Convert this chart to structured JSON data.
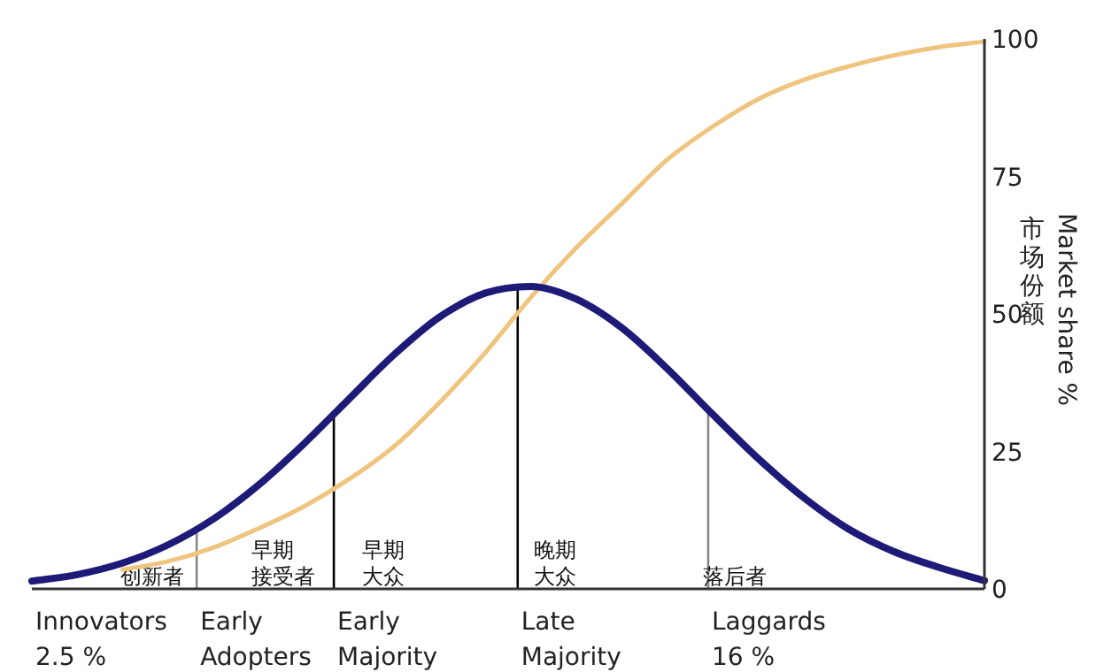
{
  "chart_data": {
    "type": "line",
    "ylabel": "Market share %",
    "categories": [
      null,
      null,
      null,
      null,
      null,
      null,
      null,
      null,
      null,
      null,
      null,
      null,
      null,
      null,
      null,
      null,
      null,
      null,
      null,
      null,
      null,
      null
    ],
    "series": [
      {
        "color": "#efc47e",
        "values": [
          null,
          null,
          3.5,
          5,
          7.5,
          11,
          15,
          20,
          26,
          34,
          43,
          53,
          62,
          70,
          78,
          84,
          89,
          92.5,
          95,
          97,
          98.5,
          99.5
        ]
      },
      {
        "color": "#1e1a78",
        "values": [
          1.4,
          2.6,
          4.7,
          8,
          12.7,
          18.9,
          26.4,
          34.6,
          42.7,
          49.5,
          53.8,
          55,
          52.7,
          47.5,
          40.1,
          31.8,
          23.8,
          16.7,
          10.9,
          6.8,
          3.9,
          1.5
        ]
      }
    ],
    "ylim": [
      0,
      100
    ],
    "yticks": [
      0,
      25,
      50,
      75,
      100
    ],
    "grid": false,
    "marker": "none",
    "line_style": "solid",
    "annotations": [
      "创新者",
      "早期",
      "接受者",
      "早期",
      "大众",
      "晚期",
      "大众",
      "落后者",
      "Innovators\n2.5 %",
      "Early\nAdopters",
      "Early\nMajority",
      "Late\nMajority",
      "Laggards\n16 %",
      "市场份额"
    ]
  }
}
